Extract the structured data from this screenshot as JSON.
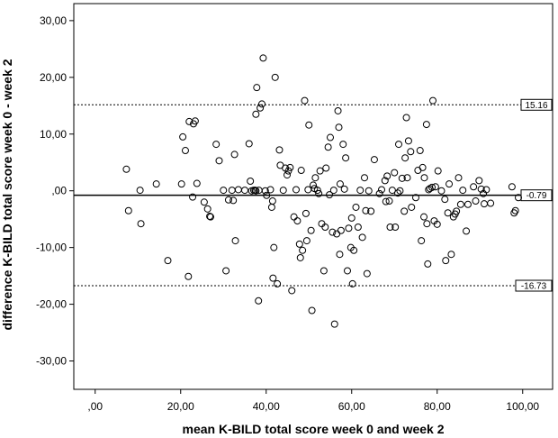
{
  "chart_data": {
    "type": "scatter",
    "title": "",
    "xlabel": "mean K-BILD total score week 0 and week 2",
    "ylabel": "difference K-BILD total score week 0 - week 2",
    "xlim": [
      -5,
      107
    ],
    "ylim": [
      -35,
      33
    ],
    "x_ticks": [
      0,
      20,
      40,
      60,
      80,
      100
    ],
    "x_tick_labels": [
      ",00",
      "20,00",
      "40,00",
      "60,00",
      "80,00",
      "100,00"
    ],
    "y_ticks": [
      30,
      20,
      10,
      0,
      -10,
      -20,
      -30
    ],
    "y_tick_labels": [
      "30,00",
      "20,00",
      "10,00",
      ",00",
      "-10,00",
      "-20,00",
      "-30,00"
    ],
    "grid": false,
    "marker_color": "#000000",
    "reference_lines": [
      {
        "label": "15.16",
        "y": 15.16,
        "style": "dashed"
      },
      {
        "label": "-0.79",
        "y": -0.79,
        "style": "solid"
      },
      {
        "label": "-16.73",
        "y": -16.73,
        "style": "dashed"
      }
    ],
    "points": [
      [
        7.3,
        3.8
      ],
      [
        7.8,
        -3.5
      ],
      [
        10.5,
        0.1
      ],
      [
        10.7,
        -5.8
      ],
      [
        14.3,
        1.2
      ],
      [
        17,
        -12.3
      ],
      [
        20.2,
        1.2
      ],
      [
        20.5,
        9.5
      ],
      [
        21.1,
        7.1
      ],
      [
        21.8,
        -15.1
      ],
      [
        22,
        12.2
      ],
      [
        22.8,
        -1.1
      ],
      [
        23,
        11.8
      ],
      [
        23.4,
        12.3
      ],
      [
        23.8,
        1.3
      ],
      [
        25.5,
        -2
      ],
      [
        26.3,
        -3.2
      ],
      [
        26.8,
        -4.5
      ],
      [
        27,
        -4.6
      ],
      [
        28.3,
        8.2
      ],
      [
        29,
        5.3
      ],
      [
        30,
        0.1
      ],
      [
        30.6,
        -14.1
      ],
      [
        31.2,
        -1.6
      ],
      [
        32,
        0.1
      ],
      [
        32.3,
        -1.7
      ],
      [
        32.6,
        6.4
      ],
      [
        32.8,
        -8.8
      ],
      [
        33.5,
        0.2
      ],
      [
        35,
        0.1
      ],
      [
        36,
        8.3
      ],
      [
        36.3,
        1.7
      ],
      [
        36.6,
        0
      ],
      [
        37.1,
        0.1
      ],
      [
        37.4,
        0.1
      ],
      [
        37.6,
        0
      ],
      [
        37.8,
        18.2
      ],
      [
        37.6,
        13.5
      ],
      [
        38.2,
        -19.4
      ],
      [
        38.3,
        0.1
      ],
      [
        38.6,
        14.6
      ],
      [
        39,
        15.3
      ],
      [
        39.3,
        23.4
      ],
      [
        39.8,
        0
      ],
      [
        40.1,
        -0.8
      ],
      [
        41,
        0.2
      ],
      [
        41.3,
        -2.9
      ],
      [
        41.5,
        -1.8
      ],
      [
        41.6,
        -15.4
      ],
      [
        41.8,
        -10
      ],
      [
        42.1,
        20
      ],
      [
        42.6,
        -16.4
      ],
      [
        43.1,
        7.2
      ],
      [
        43.3,
        4.5
      ],
      [
        44,
        0.1
      ],
      [
        44.5,
        4
      ],
      [
        44.9,
        2.8
      ],
      [
        45.2,
        3.5
      ],
      [
        45.6,
        4.1
      ],
      [
        46,
        -17.6
      ],
      [
        46.5,
        -4.6
      ],
      [
        47,
        0.2
      ],
      [
        47.3,
        -5.3
      ],
      [
        47.8,
        -9.4
      ],
      [
        48,
        -11.8
      ],
      [
        48.2,
        3.6
      ],
      [
        48.5,
        -10.5
      ],
      [
        49,
        15.9
      ],
      [
        49.3,
        -4
      ],
      [
        49.5,
        -8.8
      ],
      [
        49.8,
        0.2
      ],
      [
        50,
        11.6
      ],
      [
        50.5,
        -7
      ],
      [
        50.7,
        -21.1
      ],
      [
        51,
        1
      ],
      [
        51.3,
        0.4
      ],
      [
        51.5,
        2.3
      ],
      [
        52,
        0.1
      ],
      [
        52.3,
        -0.5
      ],
      [
        52.6,
        3.5
      ],
      [
        53,
        -5.8
      ],
      [
        53.5,
        -14.1
      ],
      [
        53.8,
        -6.4
      ],
      [
        54,
        4
      ],
      [
        54.5,
        7.7
      ],
      [
        54.8,
        -0.7
      ],
      [
        55,
        9.4
      ],
      [
        55.5,
        -7.3
      ],
      [
        55.8,
        0.1
      ],
      [
        56,
        -23.5
      ],
      [
        56.5,
        -7.6
      ],
      [
        56.8,
        14.1
      ],
      [
        57,
        11.2
      ],
      [
        57.2,
        -11.2
      ],
      [
        57.3,
        1.2
      ],
      [
        57.5,
        -7
      ],
      [
        58,
        8.2
      ],
      [
        58.3,
        0.3
      ],
      [
        58.6,
        5.8
      ],
      [
        59,
        -14.1
      ],
      [
        59.3,
        -6.6
      ],
      [
        59.8,
        -10
      ],
      [
        60,
        -4.8
      ],
      [
        60.2,
        -16.4
      ],
      [
        60.5,
        -10.5
      ],
      [
        61,
        -2.9
      ],
      [
        61.5,
        -6.4
      ],
      [
        62,
        0.1
      ],
      [
        62.5,
        -8.2
      ],
      [
        63,
        2.3
      ],
      [
        63.3,
        -3.5
      ],
      [
        63.6,
        -14.6
      ],
      [
        64,
        0
      ],
      [
        64.5,
        -3.6
      ],
      [
        65.3,
        5.5
      ],
      [
        66.5,
        -0.5
      ],
      [
        67,
        0.2
      ],
      [
        67.8,
        1.8
      ],
      [
        68,
        -1.9
      ],
      [
        68.3,
        2.6
      ],
      [
        68.8,
        -1.8
      ],
      [
        69,
        -6.4
      ],
      [
        69.5,
        0.1
      ],
      [
        70,
        3.2
      ],
      [
        70.2,
        -6.4
      ],
      [
        70.8,
        -0.4
      ],
      [
        71,
        8.2
      ],
      [
        71.3,
        0
      ],
      [
        71.8,
        2.2
      ],
      [
        72.3,
        -3.6
      ],
      [
        72.5,
        5.8
      ],
      [
        72.8,
        12.9
      ],
      [
        73,
        2.3
      ],
      [
        73.3,
        8.8
      ],
      [
        73.8,
        6.9
      ],
      [
        74,
        -2.9
      ],
      [
        75,
        -1.2
      ],
      [
        75.5,
        3.6
      ],
      [
        76,
        7.1
      ],
      [
        76.3,
        -8.8
      ],
      [
        76.6,
        4.1
      ],
      [
        76.9,
        -4.6
      ],
      [
        77,
        2.3
      ],
      [
        77.5,
        11.7
      ],
      [
        77.6,
        -5.8
      ],
      [
        77.8,
        -12.9
      ],
      [
        78,
        0.2
      ],
      [
        78.3,
        0.4
      ],
      [
        78.8,
        0.6
      ],
      [
        79,
        15.9
      ],
      [
        79.3,
        -5.3
      ],
      [
        79.6,
        0.7
      ],
      [
        80.2,
        3.5
      ],
      [
        80,
        -5.9
      ],
      [
        81,
        0
      ],
      [
        81.8,
        -1.5
      ],
      [
        82,
        -12.3
      ],
      [
        82.5,
        -3.9
      ],
      [
        82.8,
        1.2
      ],
      [
        83.3,
        -11.2
      ],
      [
        83.8,
        -4.6
      ],
      [
        84.2,
        -4.1
      ],
      [
        84.5,
        -3.6
      ],
      [
        85,
        2.3
      ],
      [
        85.5,
        -2.4
      ],
      [
        86,
        0.1
      ],
      [
        86.8,
        -7.1
      ],
      [
        87.2,
        -2.4
      ],
      [
        88.5,
        0.7
      ],
      [
        89,
        -1.8
      ],
      [
        89.8,
        1.8
      ],
      [
        90.3,
        0.3
      ],
      [
        90.8,
        -0.5
      ],
      [
        91,
        -2.3
      ],
      [
        91.5,
        0.2
      ],
      [
        92.5,
        -2.2
      ],
      [
        97.5,
        0.7
      ],
      [
        98,
        -3.9
      ],
      [
        98.3,
        -3.5
      ],
      [
        99,
        -1.2
      ]
    ]
  }
}
